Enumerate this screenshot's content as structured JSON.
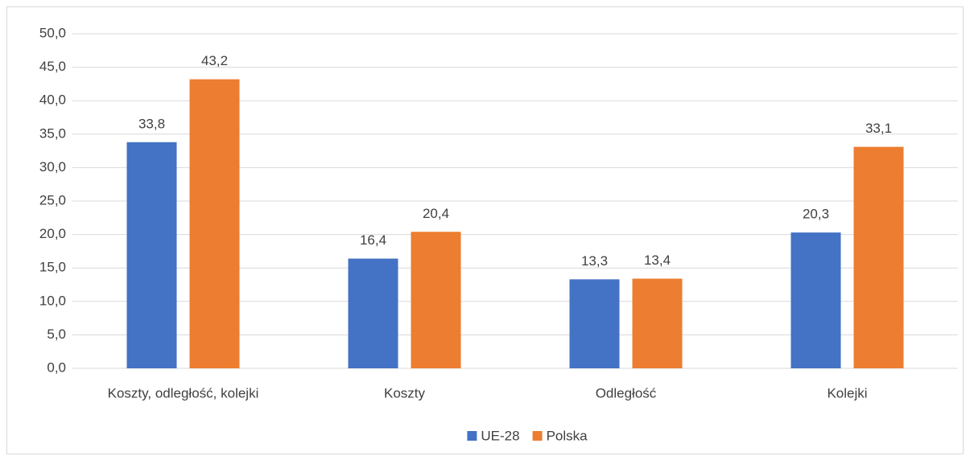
{
  "chart_data": {
    "type": "bar",
    "categories": [
      "Koszty, odległość, kolejki",
      "Koszty",
      "Odległość",
      "Kolejki"
    ],
    "series": [
      {
        "name": "UE-28",
        "color": "#4472c4",
        "values": [
          33.8,
          16.4,
          13.3,
          20.3
        ],
        "value_labels": [
          "33,8",
          "16,4",
          "13,3",
          "20,3"
        ]
      },
      {
        "name": "Polska",
        "color": "#ed7d31",
        "values": [
          43.2,
          20.4,
          13.4,
          33.1
        ],
        "value_labels": [
          "43,2",
          "20,4",
          "13,4",
          "33,1"
        ]
      }
    ],
    "ylim": [
      0,
      50
    ],
    "yticks": [
      {
        "value": 0,
        "label": "0,0"
      },
      {
        "value": 5,
        "label": "5,0"
      },
      {
        "value": 10,
        "label": "10,0"
      },
      {
        "value": 15,
        "label": "15,0"
      },
      {
        "value": 20,
        "label": "20,0"
      },
      {
        "value": 25,
        "label": "25,0"
      },
      {
        "value": 30,
        "label": "30,0"
      },
      {
        "value": 35,
        "label": "35,0"
      },
      {
        "value": 40,
        "label": "40,0"
      },
      {
        "value": 45,
        "label": "45,0"
      },
      {
        "value": 50,
        "label": "50,0"
      }
    ],
    "grid": true,
    "legend": "bottom"
  }
}
